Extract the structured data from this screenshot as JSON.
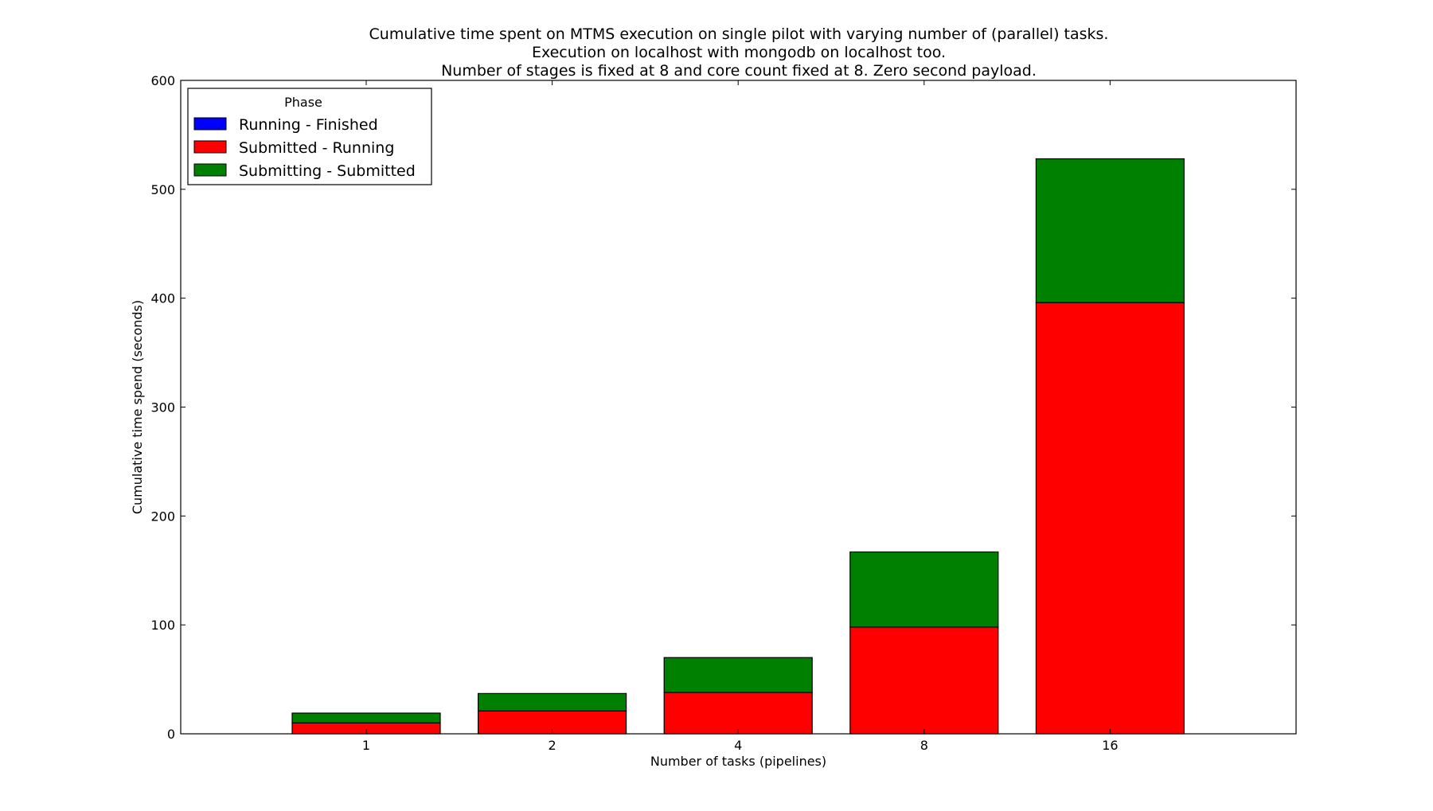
{
  "chart_data": {
    "type": "bar",
    "stacked": true,
    "title": [
      "Cumulative time spent on MTMS execution on single pilot with varying number of (parallel) tasks.",
      "Execution on localhost with mongodb on localhost too.",
      "Number of stages is fixed at 8 and core count fixed at 8. Zero second payload."
    ],
    "xlabel": "Number of tasks (pipelines)",
    "ylabel": "Cumulative time spend (seconds)",
    "categories": [
      "1",
      "2",
      "4",
      "8",
      "16"
    ],
    "ylim": [
      0,
      600
    ],
    "yticks": [
      0,
      100,
      200,
      300,
      400,
      500,
      600
    ],
    "grid": false,
    "legend": {
      "title": "Phase",
      "placement": "top-left",
      "entries": [
        "Running - Finished",
        "Submitted - Running",
        "Submitting - Submitted"
      ]
    },
    "series": [
      {
        "name": "Running - Finished",
        "color": "#0000ff",
        "values": [
          0,
          0,
          0,
          0,
          0
        ]
      },
      {
        "name": "Submitted - Running",
        "color": "#ff0000",
        "values": [
          10,
          21,
          38,
          98,
          396
        ]
      },
      {
        "name": "Submitting - Submitted",
        "color": "#008000",
        "values": [
          9,
          16,
          32,
          69,
          132
        ]
      }
    ]
  }
}
